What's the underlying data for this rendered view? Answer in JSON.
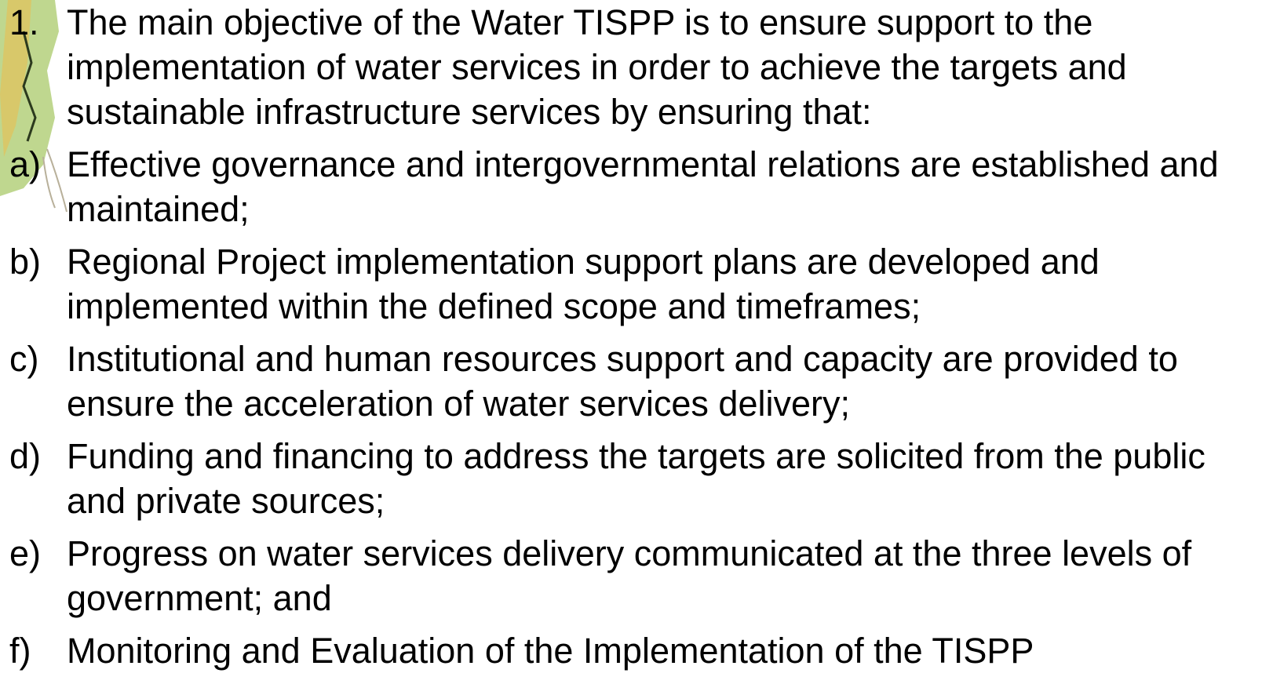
{
  "items": [
    {
      "marker": "1.",
      "text": "The main objective of the Water TISPP is to ensure support to the implementation of water services in order to achieve the targets and sustainable infrastructure services by ensuring that:"
    },
    {
      "marker": "a)",
      "text": "Effective governance and intergovernmental relations are established and maintained;"
    },
    {
      "marker": "b)",
      "text": "Regional Project implementation support plans are developed and implemented within the defined scope and timeframes;"
    },
    {
      "marker": "c)",
      "text": "Institutional and human resources support and capacity are provided to ensure the acceleration of water services delivery;"
    },
    {
      "marker": "d)",
      "text": "Funding and financing to address the targets are solicited from the public and private sources;"
    },
    {
      "marker": "e)",
      "text": "Progress on water services delivery communicated at the three levels of government; and"
    },
    {
      "marker": "f)",
      "text": "Monitoring and Evaluation of the Implementation of the TISPP"
    }
  ]
}
